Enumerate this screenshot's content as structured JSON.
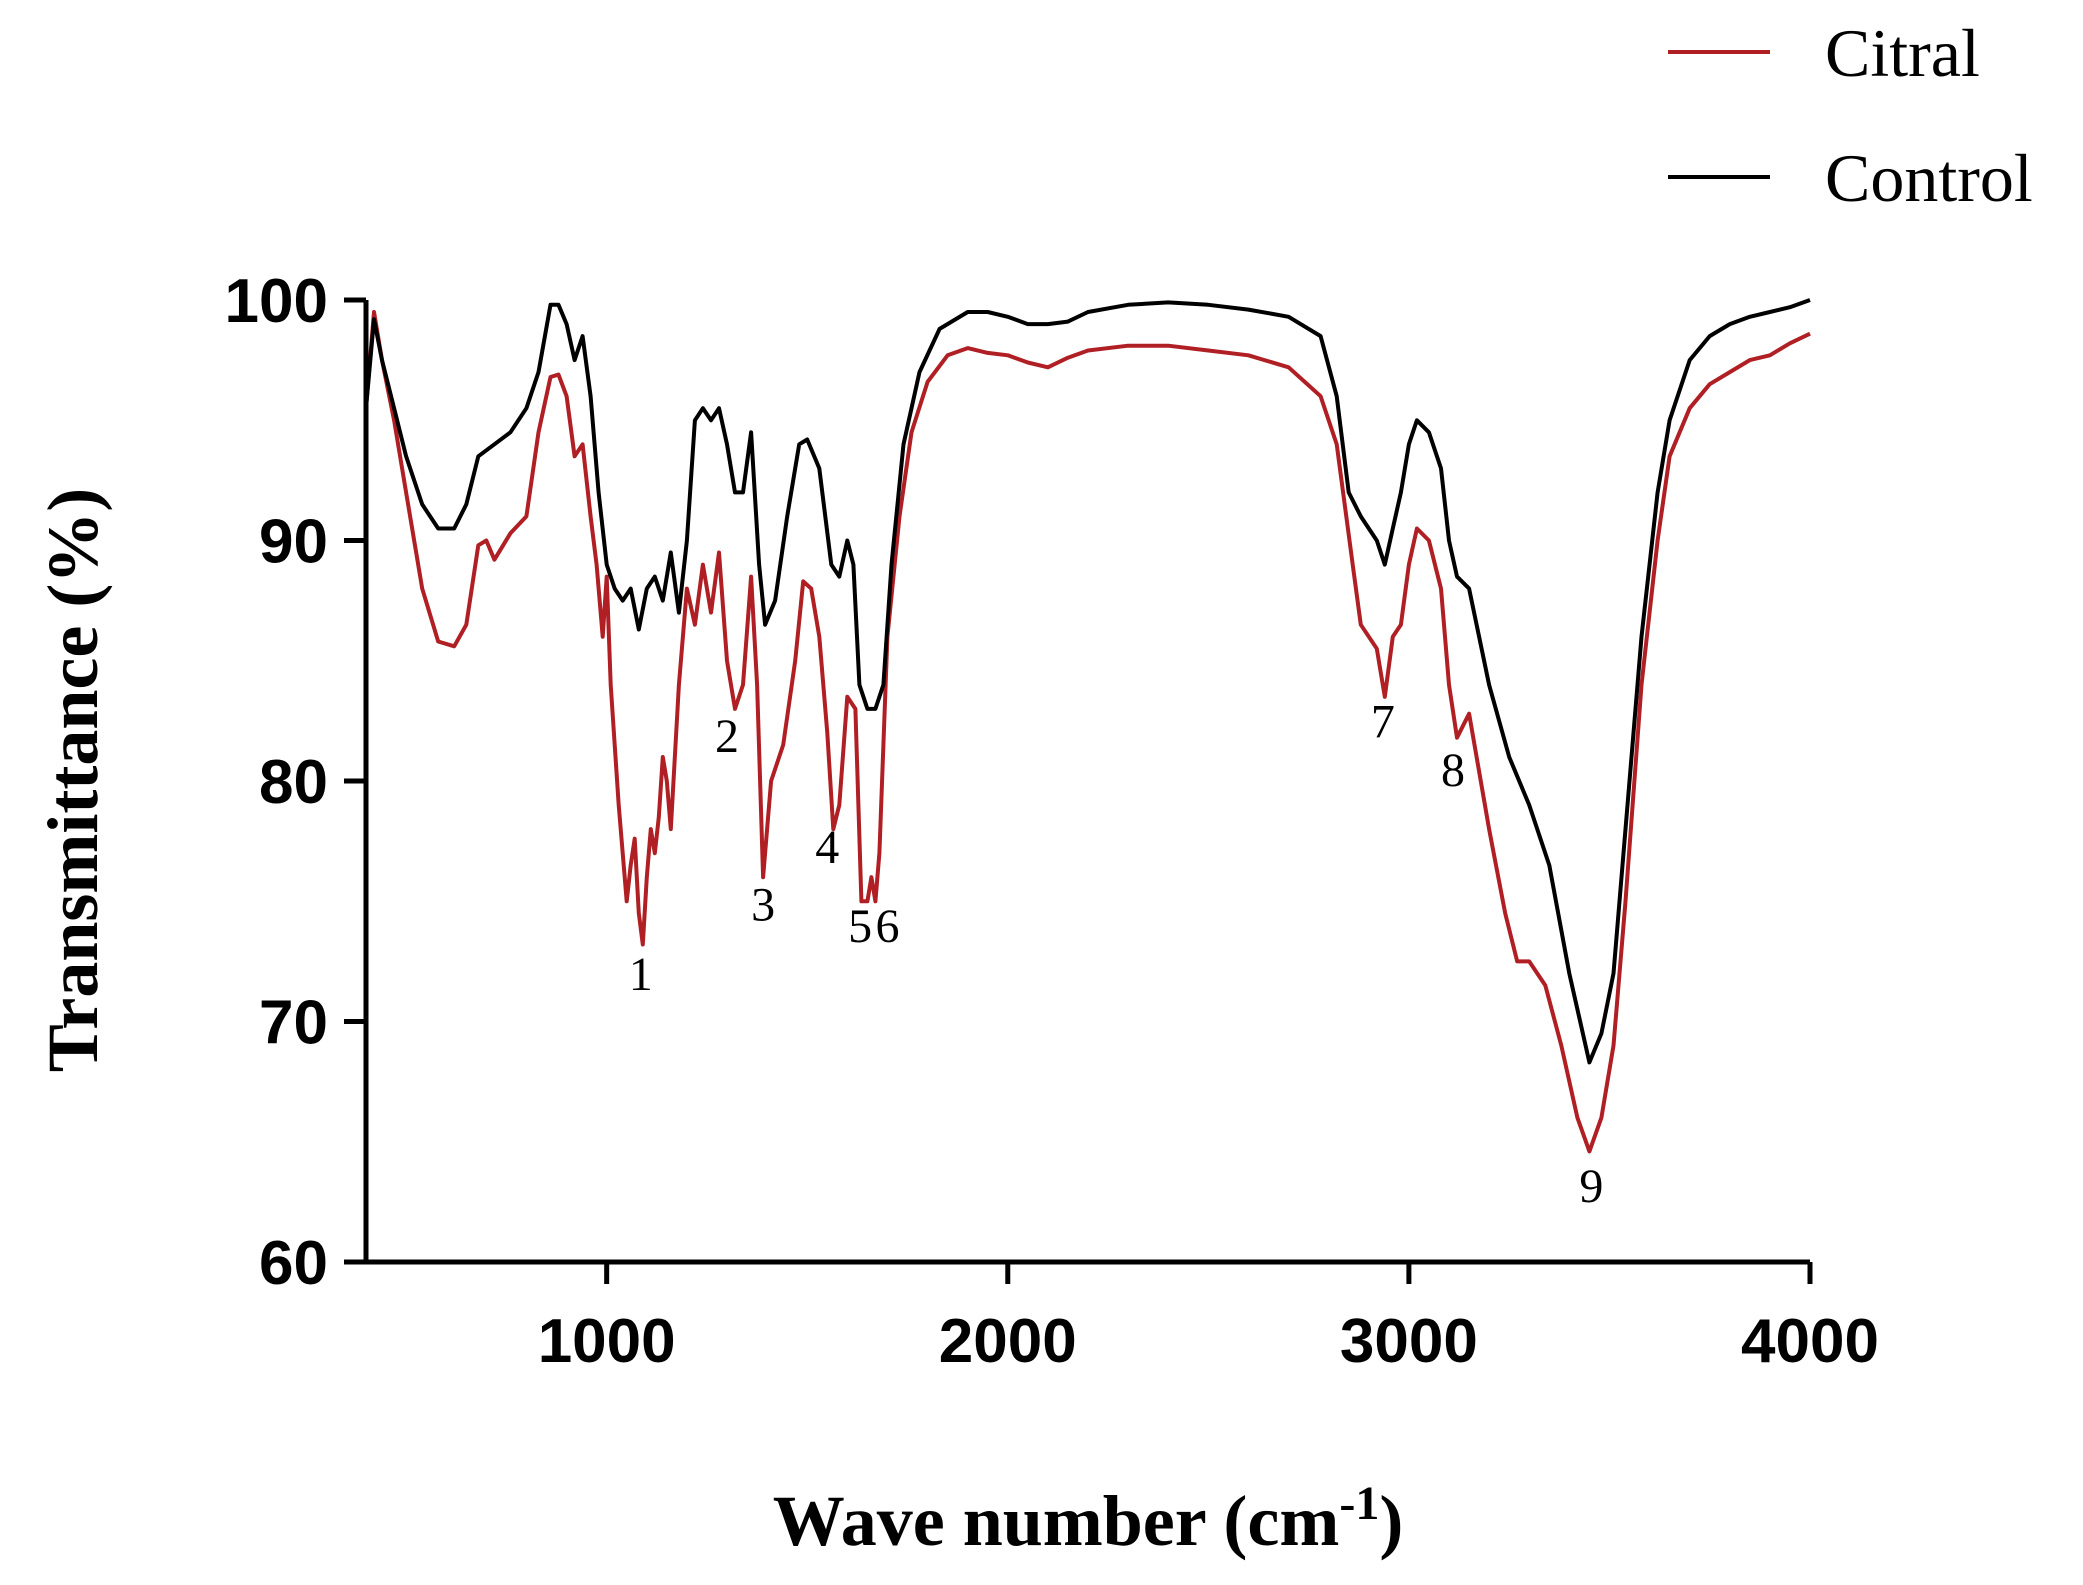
{
  "chart_data": {
    "type": "line",
    "title": "",
    "xlabel": "Wave number (cm",
    "xlabel_sup": "-1",
    "xlabel_close": ")",
    "ylabel": "Transmittance (%)",
    "xlim": [
      400,
      4000
    ],
    "ylim": [
      60,
      100
    ],
    "x_ticks": [
      1000,
      2000,
      3000,
      4000
    ],
    "y_ticks": [
      60,
      70,
      80,
      90,
      100
    ],
    "x_tick_labels": [
      "1000",
      "2000",
      "3000",
      "4000"
    ],
    "y_tick_labels": [
      "60",
      "70",
      "80",
      "90",
      "100"
    ],
    "legend_position": "top-right",
    "series": [
      {
        "name": "Citral",
        "color": "#b01f24",
        "points": [
          [
            400,
            95.5
          ],
          [
            420,
            99.5
          ],
          [
            440,
            97.5
          ],
          [
            470,
            95
          ],
          [
            500,
            92
          ],
          [
            540,
            88
          ],
          [
            580,
            85.8
          ],
          [
            620,
            85.6
          ],
          [
            650,
            86.5
          ],
          [
            680,
            89.8
          ],
          [
            700,
            90
          ],
          [
            720,
            89.2
          ],
          [
            760,
            90.3
          ],
          [
            800,
            91
          ],
          [
            830,
            94.5
          ],
          [
            860,
            96.8
          ],
          [
            880,
            96.9
          ],
          [
            900,
            96
          ],
          [
            920,
            93.5
          ],
          [
            940,
            94
          ],
          [
            960,
            91
          ],
          [
            975,
            89
          ],
          [
            990,
            86
          ],
          [
            1000,
            88.5
          ],
          [
            1010,
            84
          ],
          [
            1030,
            79
          ],
          [
            1050,
            75
          ],
          [
            1060,
            76.5
          ],
          [
            1070,
            77.6
          ],
          [
            1080,
            74.5
          ],
          [
            1090,
            73.2
          ],
          [
            1100,
            76
          ],
          [
            1110,
            78
          ],
          [
            1120,
            77
          ],
          [
            1130,
            78.5
          ],
          [
            1140,
            81
          ],
          [
            1150,
            80
          ],
          [
            1160,
            78
          ],
          [
            1180,
            84
          ],
          [
            1200,
            88
          ],
          [
            1220,
            86.5
          ],
          [
            1240,
            89
          ],
          [
            1260,
            87
          ],
          [
            1280,
            89.5
          ],
          [
            1300,
            85
          ],
          [
            1320,
            83
          ],
          [
            1340,
            84
          ],
          [
            1360,
            88.5
          ],
          [
            1375,
            84
          ],
          [
            1390,
            76
          ],
          [
            1410,
            80
          ],
          [
            1440,
            81.5
          ],
          [
            1470,
            85
          ],
          [
            1490,
            88.3
          ],
          [
            1510,
            88
          ],
          [
            1530,
            86
          ],
          [
            1550,
            82
          ],
          [
            1565,
            78
          ],
          [
            1580,
            79
          ],
          [
            1600,
            83.5
          ],
          [
            1620,
            83
          ],
          [
            1635,
            75
          ],
          [
            1650,
            75
          ],
          [
            1660,
            76
          ],
          [
            1670,
            75
          ],
          [
            1680,
            77
          ],
          [
            1700,
            86
          ],
          [
            1730,
            91
          ],
          [
            1760,
            94.5
          ],
          [
            1800,
            96.6
          ],
          [
            1850,
            97.7
          ],
          [
            1900,
            98
          ],
          [
            1950,
            97.8
          ],
          [
            2000,
            97.7
          ],
          [
            2050,
            97.4
          ],
          [
            2100,
            97.2
          ],
          [
            2150,
            97.6
          ],
          [
            2200,
            97.9
          ],
          [
            2300,
            98.1
          ],
          [
            2400,
            98.1
          ],
          [
            2500,
            97.9
          ],
          [
            2600,
            97.7
          ],
          [
            2700,
            97.2
          ],
          [
            2780,
            96
          ],
          [
            2820,
            94
          ],
          [
            2860,
            89
          ],
          [
            2880,
            86.5
          ],
          [
            2900,
            86
          ],
          [
            2920,
            85.5
          ],
          [
            2940,
            83.5
          ],
          [
            2960,
            86
          ],
          [
            2980,
            86.5
          ],
          [
            3000,
            89
          ],
          [
            3020,
            90.5
          ],
          [
            3050,
            90
          ],
          [
            3080,
            88
          ],
          [
            3100,
            84
          ],
          [
            3120,
            81.8
          ],
          [
            3150,
            82.8
          ],
          [
            3200,
            78
          ],
          [
            3240,
            74.5
          ],
          [
            3270,
            72.5
          ],
          [
            3300,
            72.5
          ],
          [
            3340,
            71.5
          ],
          [
            3380,
            69
          ],
          [
            3420,
            66
          ],
          [
            3450,
            64.6
          ],
          [
            3480,
            66
          ],
          [
            3510,
            69
          ],
          [
            3540,
            75
          ],
          [
            3580,
            84
          ],
          [
            3620,
            90
          ],
          [
            3650,
            93.5
          ],
          [
            3700,
            95.5
          ],
          [
            3750,
            96.5
          ],
          [
            3800,
            97
          ],
          [
            3850,
            97.5
          ],
          [
            3900,
            97.7
          ],
          [
            3950,
            98.2
          ],
          [
            4000,
            98.6
          ]
        ]
      },
      {
        "name": "Control",
        "color": "#000000",
        "points": [
          [
            400,
            95.5
          ],
          [
            420,
            99.2
          ],
          [
            440,
            97.5
          ],
          [
            470,
            95.5
          ],
          [
            500,
            93.5
          ],
          [
            540,
            91.5
          ],
          [
            580,
            90.5
          ],
          [
            620,
            90.5
          ],
          [
            650,
            91.5
          ],
          [
            680,
            93.5
          ],
          [
            720,
            94
          ],
          [
            760,
            94.5
          ],
          [
            800,
            95.5
          ],
          [
            830,
            97
          ],
          [
            860,
            99.8
          ],
          [
            880,
            99.8
          ],
          [
            900,
            99
          ],
          [
            920,
            97.5
          ],
          [
            940,
            98.5
          ],
          [
            960,
            96
          ],
          [
            980,
            92
          ],
          [
            1000,
            89
          ],
          [
            1020,
            88
          ],
          [
            1040,
            87.5
          ],
          [
            1060,
            88
          ],
          [
            1080,
            86.3
          ],
          [
            1100,
            88
          ],
          [
            1120,
            88.5
          ],
          [
            1140,
            87.5
          ],
          [
            1160,
            89.5
          ],
          [
            1180,
            87
          ],
          [
            1200,
            90
          ],
          [
            1220,
            95
          ],
          [
            1240,
            95.5
          ],
          [
            1260,
            95
          ],
          [
            1280,
            95.5
          ],
          [
            1300,
            94
          ],
          [
            1320,
            92
          ],
          [
            1340,
            92
          ],
          [
            1360,
            94.5
          ],
          [
            1380,
            89
          ],
          [
            1395,
            86.5
          ],
          [
            1420,
            87.5
          ],
          [
            1450,
            91
          ],
          [
            1480,
            94
          ],
          [
            1500,
            94.2
          ],
          [
            1530,
            93
          ],
          [
            1560,
            89
          ],
          [
            1580,
            88.5
          ],
          [
            1600,
            90
          ],
          [
            1615,
            89
          ],
          [
            1630,
            84
          ],
          [
            1650,
            83
          ],
          [
            1670,
            83
          ],
          [
            1690,
            84
          ],
          [
            1710,
            89
          ],
          [
            1740,
            94
          ],
          [
            1780,
            97
          ],
          [
            1830,
            98.8
          ],
          [
            1900,
            99.5
          ],
          [
            1950,
            99.5
          ],
          [
            2000,
            99.3
          ],
          [
            2050,
            99
          ],
          [
            2100,
            99
          ],
          [
            2150,
            99.1
          ],
          [
            2200,
            99.5
          ],
          [
            2300,
            99.8
          ],
          [
            2400,
            99.9
          ],
          [
            2500,
            99.8
          ],
          [
            2600,
            99.6
          ],
          [
            2700,
            99.3
          ],
          [
            2780,
            98.5
          ],
          [
            2820,
            96
          ],
          [
            2850,
            92
          ],
          [
            2880,
            91
          ],
          [
            2900,
            90.5
          ],
          [
            2920,
            90
          ],
          [
            2940,
            89
          ],
          [
            2960,
            90.5
          ],
          [
            2980,
            92
          ],
          [
            3000,
            94
          ],
          [
            3020,
            95
          ],
          [
            3050,
            94.5
          ],
          [
            3080,
            93
          ],
          [
            3100,
            90
          ],
          [
            3120,
            88.5
          ],
          [
            3150,
            88
          ],
          [
            3200,
            84
          ],
          [
            3250,
            81
          ],
          [
            3300,
            79
          ],
          [
            3350,
            76.5
          ],
          [
            3400,
            72
          ],
          [
            3450,
            68.3
          ],
          [
            3480,
            69.5
          ],
          [
            3510,
            72
          ],
          [
            3540,
            78
          ],
          [
            3580,
            86
          ],
          [
            3620,
            92
          ],
          [
            3650,
            95
          ],
          [
            3700,
            97.5
          ],
          [
            3750,
            98.5
          ],
          [
            3800,
            99
          ],
          [
            3850,
            99.3
          ],
          [
            3900,
            99.5
          ],
          [
            3950,
            99.7
          ],
          [
            4000,
            100
          ]
        ]
      }
    ],
    "annotations": [
      {
        "text": "1",
        "x": 1085,
        "y": 71.3
      },
      {
        "text": "2",
        "x": 1300,
        "y": 81.2
      },
      {
        "text": "3",
        "x": 1390,
        "y": 74.2
      },
      {
        "text": "4",
        "x": 1550,
        "y": 76.6
      },
      {
        "text": "5",
        "x": 1632,
        "y": 73.3
      },
      {
        "text": "6",
        "x": 1700,
        "y": 73.3
      },
      {
        "text": "7",
        "x": 2935,
        "y": 81.8
      },
      {
        "text": "8",
        "x": 3110,
        "y": 79.8
      },
      {
        "text": "9",
        "x": 3455,
        "y": 62.5
      }
    ]
  }
}
